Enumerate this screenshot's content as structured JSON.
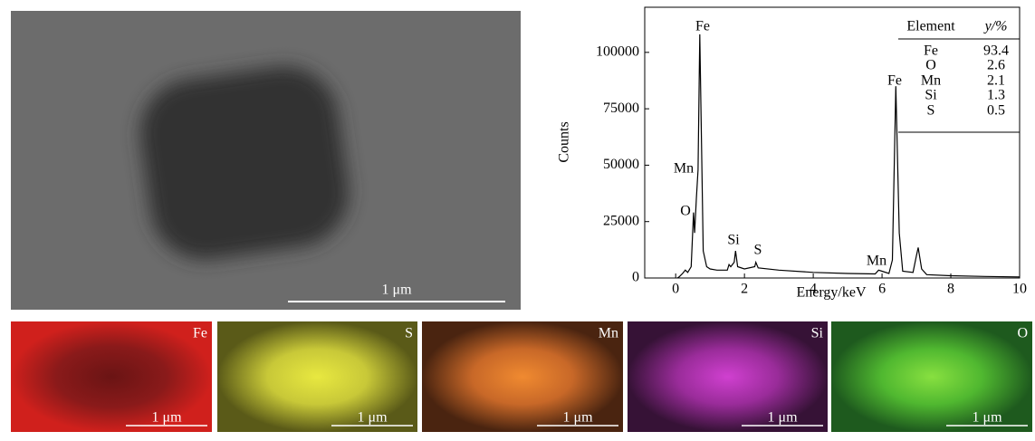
{
  "chart_data": {
    "type": "line",
    "x": [
      0.05,
      0.1,
      0.2,
      0.28,
      0.35,
      0.45,
      0.52,
      0.55,
      0.6,
      0.65,
      0.7,
      0.75,
      0.8,
      0.9,
      1.0,
      1.2,
      1.5,
      1.55,
      1.6,
      1.7,
      1.74,
      1.8,
      2.0,
      2.3,
      2.33,
      2.4,
      3.0,
      4.0,
      5.0,
      5.8,
      5.9,
      6.0,
      6.2,
      6.3,
      6.4,
      6.5,
      6.6,
      6.9,
      7.0,
      7.05,
      7.15,
      7.3,
      8.0,
      9.0,
      10.0
    ],
    "values": [
      0,
      500,
      2000,
      3500,
      2500,
      5000,
      29000,
      20000,
      35000,
      48000,
      108000,
      60000,
      12000,
      5000,
      4000,
      3500,
      3500,
      6000,
      5000,
      7000,
      12000,
      5000,
      4000,
      5000,
      7000,
      4500,
      3500,
      2500,
      2000,
      1800,
      3500,
      3000,
      2000,
      8000,
      85000,
      20000,
      3000,
      2500,
      10000,
      13500,
      4000,
      1500,
      1000,
      700,
      500
    ],
    "color": "#000000",
    "xlabel": "Energy/keV",
    "ylabel": "Counts",
    "xlim": [
      -0.9,
      10
    ],
    "ylim": [
      0,
      120000
    ],
    "xticks": [
      0,
      2,
      4,
      6,
      8,
      10
    ],
    "yticks": [
      0,
      25000,
      50000,
      75000,
      100000
    ],
    "annotations": [
      "Fe",
      "Fe",
      "Mn",
      "O",
      "Si",
      "S",
      "Mn"
    ],
    "table": {
      "header": [
        "Element",
        "y/%"
      ],
      "rows": [
        [
          "Fe",
          93.4
        ],
        [
          "O",
          2.6
        ],
        [
          "Mn",
          2.1
        ],
        [
          "Si",
          1.3
        ],
        [
          "S",
          0.5
        ]
      ]
    }
  },
  "images": {
    "sem": {
      "scale_label": "1 μm"
    },
    "maps": [
      {
        "element": "Fe",
        "scale_label": "1 μm"
      },
      {
        "element": "S",
        "scale_label": "1 μm"
      },
      {
        "element": "Mn",
        "scale_label": "1 μm"
      },
      {
        "element": "Si",
        "scale_label": "1 μm"
      },
      {
        "element": "O",
        "scale_label": "1 μm"
      }
    ]
  }
}
